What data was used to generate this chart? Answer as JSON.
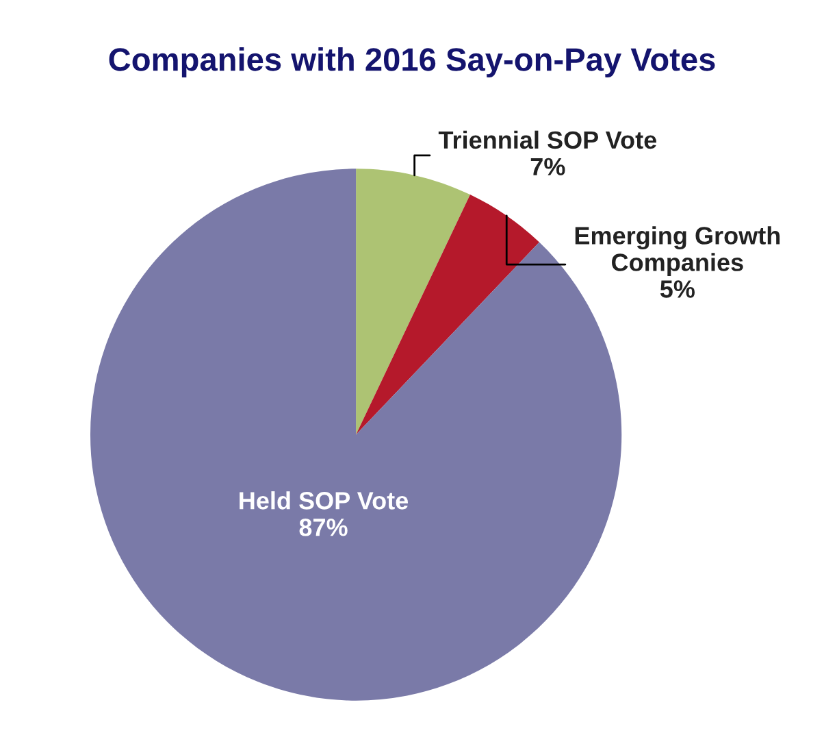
{
  "chart_data": {
    "type": "pie",
    "title": "Companies with 2016 Say-on-Pay Votes",
    "categories": [
      "Triennial SOP Vote",
      "Emerging Growth\nCompanies",
      "Held SOP Vote"
    ],
    "values": [
      7,
      5,
      87
    ],
    "colors": [
      "#adc373",
      "#b5192b",
      "#7a7aa8"
    ],
    "value_labels": [
      "7%",
      "5%",
      "87%"
    ]
  }
}
